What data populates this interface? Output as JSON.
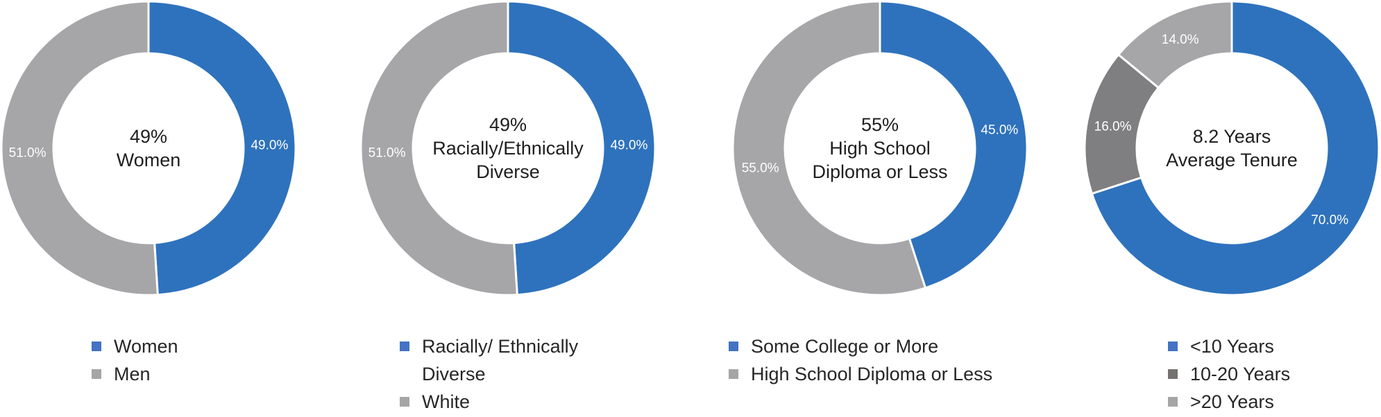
{
  "colors": {
    "blue": "#2e72bd",
    "gray": "#a6a6a9",
    "darkgray": "#7f7f82",
    "legend_blue": "#4472c4",
    "legend_gray": "#a5a5a5",
    "legend_darkgray": "#767171"
  },
  "chart_data": [
    {
      "type": "donut",
      "center_label": [
        "49%",
        "Women"
      ],
      "slices": [
        {
          "name": "Women",
          "value": 49.0,
          "label": "49.0%",
          "color": "#2e72bd"
        },
        {
          "name": "Men",
          "value": 51.0,
          "label": "51.0%",
          "color": "#a6a6a9"
        }
      ],
      "legend": [
        {
          "text": "Women",
          "color": "#4472c4"
        },
        {
          "text": "Men",
          "color": "#a5a5a5"
        }
      ]
    },
    {
      "type": "donut",
      "center_label": [
        "49%",
        "Racially/Ethnically",
        "Diverse"
      ],
      "slices": [
        {
          "name": "Racially/ Ethnically Diverse",
          "value": 49.0,
          "label": "49.0%",
          "color": "#2e72bd"
        },
        {
          "name": "White",
          "value": 51.0,
          "label": "51.0%",
          "color": "#a6a6a9"
        }
      ],
      "legend": [
        {
          "text": "Racially/ Ethnically\nDiverse",
          "color": "#4472c4"
        },
        {
          "text": "White",
          "color": "#a5a5a5"
        }
      ]
    },
    {
      "type": "donut",
      "center_label": [
        "55%",
        "High School",
        "Diploma or Less"
      ],
      "slices": [
        {
          "name": "Some College or More",
          "value": 45.0,
          "label": "45.0%",
          "color": "#2e72bd"
        },
        {
          "name": "High School Diploma or Less",
          "value": 55.0,
          "label": "55.0%",
          "color": "#a6a6a9"
        }
      ],
      "legend": [
        {
          "text": "Some College or More",
          "color": "#4472c4"
        },
        {
          "text": "High School Diploma or Less",
          "color": "#a5a5a5"
        }
      ]
    },
    {
      "type": "donut",
      "center_label": [
        "8.2 Years",
        "Average Tenure"
      ],
      "slices": [
        {
          "name": "<10 Years",
          "value": 70.0,
          "label": "70.0%",
          "color": "#2e72bd"
        },
        {
          "name": "10-20 Years",
          "value": 16.0,
          "label": "16.0%",
          "color": "#7f7f82"
        },
        {
          "name": ">20 Years",
          "value": 14.0,
          "label": "14.0%",
          "color": "#a6a6a9"
        }
      ],
      "legend": [
        {
          "text": "<10 Years",
          "color": "#4472c4"
        },
        {
          "text": "10-20 Years",
          "color": "#767171"
        },
        {
          "text": ">20 Years",
          "color": "#a5a5a5"
        }
      ]
    }
  ]
}
